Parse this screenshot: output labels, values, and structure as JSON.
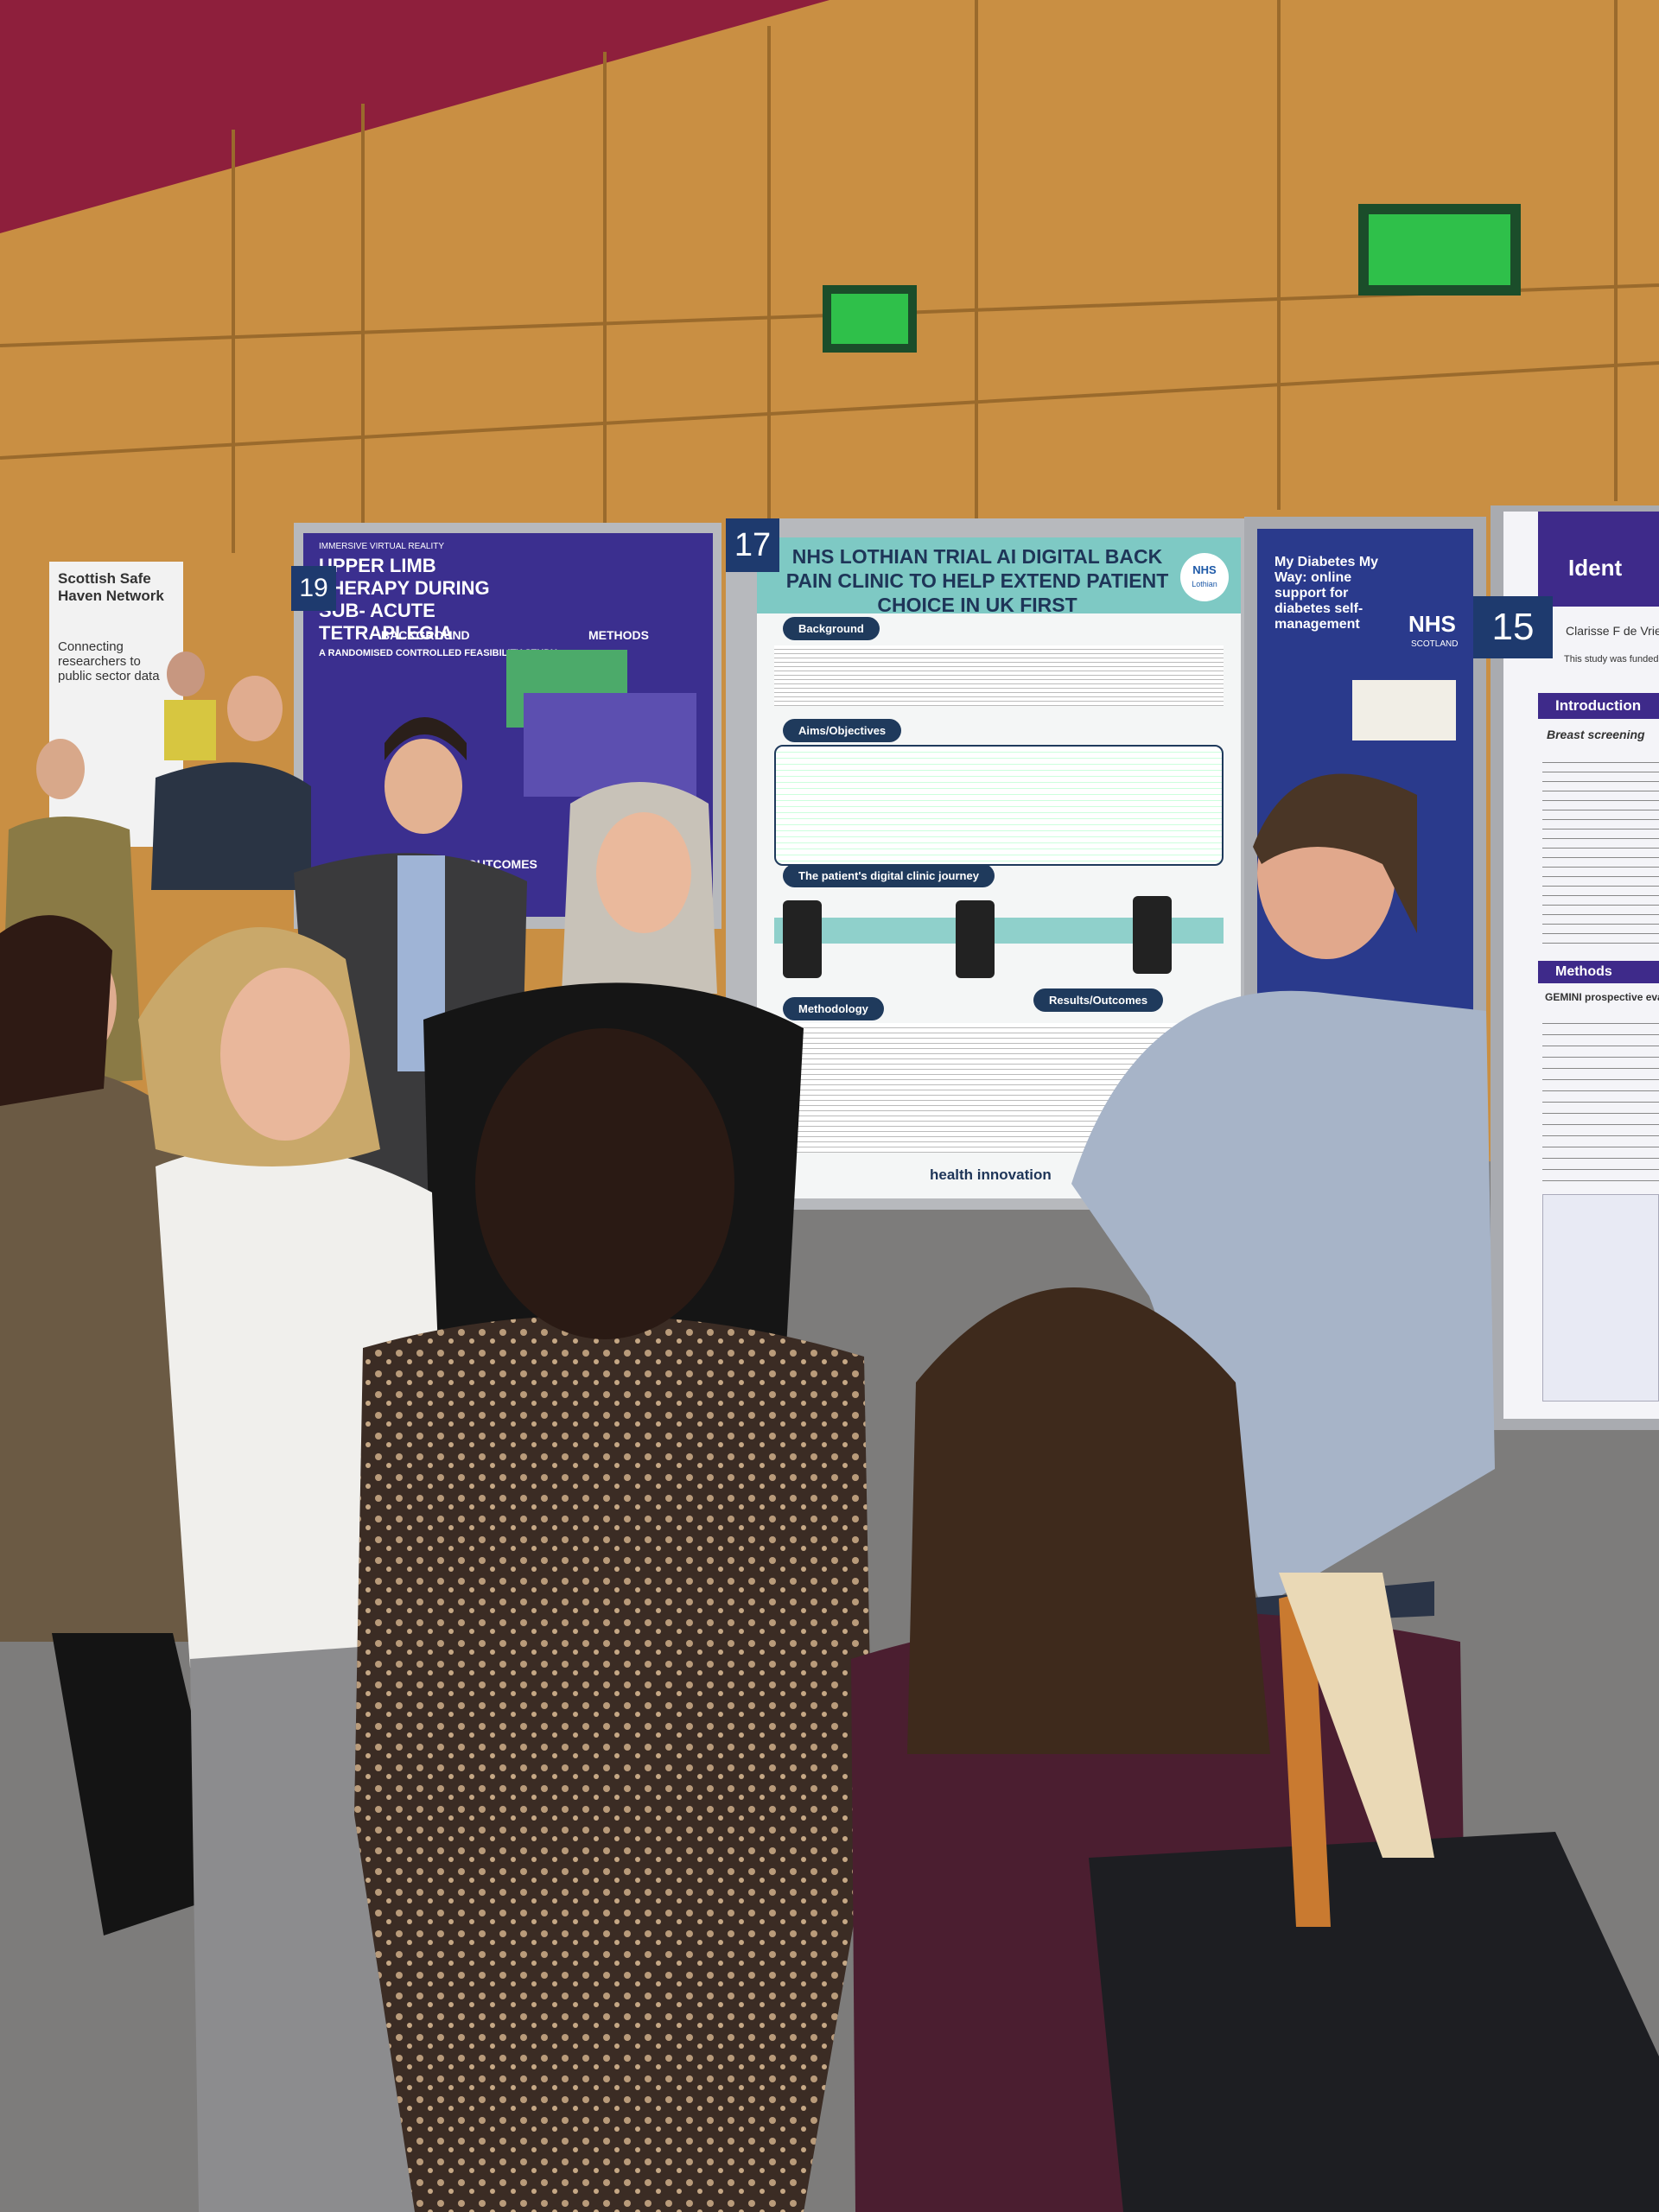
{
  "banner": {
    "title": "Scottish Safe Haven Network",
    "subtitle": "Connecting researchers to public sector data"
  },
  "posters": [
    {
      "number": "19",
      "kicker": "IMMERSIVE VIRTUAL REALITY",
      "title": "UPPER LIMB THERAPY DURING SUB- ACUTE TETRAPLEGIA",
      "subtitle": "A RANDOMISED CONTROLLED FEASIBILITY STUDY",
      "sections": [
        "BACKGROUND",
        "METHODS",
        "OUTCOMES"
      ]
    },
    {
      "number": "17",
      "title": "NHS LOTHIAN TRIAL AI DIGITAL BACK PAIN CLINIC TO HELP EXTEND PATIENT CHOICE IN UK FIRST",
      "logo": [
        "NHS",
        "Lothian"
      ],
      "sections": [
        "Background",
        "Aims/Objectives",
        "The patient's digital clinic journey",
        "Methodology",
        "Results/Outcomes"
      ],
      "footer": "health innovation"
    },
    {
      "title": "My Diabetes My Way: online support for diabetes self-management",
      "logo": [
        "NHS",
        "SCOTLAND"
      ]
    },
    {
      "number": "15",
      "title": "Ident",
      "author": "Clarisse F de Vries,",
      "note": "This study was funded by",
      "sections": [
        "Introduction",
        "Methods"
      ],
      "subheads": [
        "Breast screening",
        "GEMINI prospective evaluation"
      ]
    }
  ]
}
